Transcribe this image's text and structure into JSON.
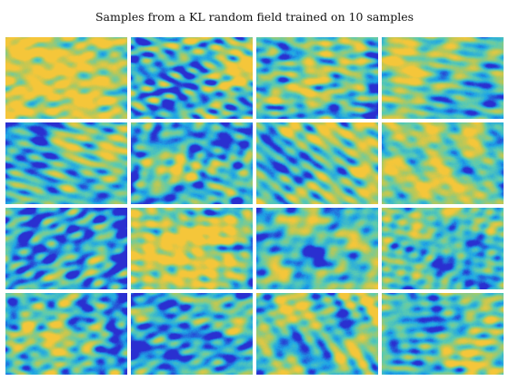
{
  "title": "Samples from a KL random field trained on 10 samples",
  "colors": {
    "low": "#2a2fd0",
    "mid_low": "#1ea6e6",
    "mid": "#5ccbb0",
    "mid_high": "#b6c85a",
    "high": "#f5c63a"
  },
  "samples": [
    {
      "id": 1,
      "base": 0.82,
      "blobs": [
        [
          0.25,
          0.35,
          0.35,
          0.1
        ],
        [
          0.7,
          0.6,
          0.3,
          0.05
        ]
      ],
      "edge": "right"
    },
    {
      "id": 2,
      "base": 0.4,
      "blobs": [
        [
          0.88,
          0.4,
          0.18,
          0.55
        ],
        [
          0.2,
          0.7,
          0.2,
          -0.2
        ]
      ],
      "edge": "none"
    },
    {
      "id": 3,
      "base": 0.45,
      "blobs": [
        [
          0.35,
          0.55,
          0.15,
          0.4
        ],
        [
          0.75,
          0.25,
          0.25,
          0.25
        ],
        [
          0.15,
          0.3,
          0.2,
          -0.2
        ]
      ],
      "edge": "right"
    },
    {
      "id": 4,
      "base": 0.55,
      "blobs": [
        [
          0.2,
          0.3,
          0.25,
          0.25
        ],
        [
          0.75,
          0.8,
          0.2,
          -0.3
        ]
      ],
      "edge": "none"
    },
    {
      "id": 5,
      "base": 0.45,
      "blobs": [
        [
          0.35,
          0.5,
          0.15,
          -0.3
        ],
        [
          0.8,
          0.35,
          0.2,
          0.35
        ]
      ],
      "edge": "topleft"
    },
    {
      "id": 6,
      "base": 0.42,
      "blobs": [
        [
          0.35,
          0.52,
          0.12,
          0.55
        ],
        [
          0.7,
          0.2,
          0.2,
          -0.25
        ]
      ],
      "edge": "left"
    },
    {
      "id": 7,
      "base": 0.55,
      "blobs": [
        [
          0.3,
          0.5,
          0.2,
          -0.35
        ],
        [
          0.55,
          0.15,
          0.15,
          0.35
        ],
        [
          0.85,
          0.7,
          0.2,
          0.2
        ]
      ],
      "edge": "none"
    },
    {
      "id": 8,
      "base": 0.62,
      "blobs": [
        [
          0.5,
          0.5,
          0.3,
          0.1
        ]
      ],
      "edge": "right"
    },
    {
      "id": 9,
      "base": 0.4,
      "blobs": [
        [
          0.25,
          0.4,
          0.3,
          -0.2
        ],
        [
          0.75,
          0.6,
          0.25,
          0.05
        ]
      ],
      "edge": "topright"
    },
    {
      "id": 10,
      "base": 0.7,
      "blobs": [
        [
          0.45,
          0.4,
          0.3,
          0.2
        ],
        [
          0.5,
          0.8,
          0.2,
          0.15
        ]
      ],
      "edge": "right"
    },
    {
      "id": 11,
      "base": 0.55,
      "blobs": [
        [
          0.35,
          0.55,
          0.15,
          -0.45
        ],
        [
          0.2,
          0.2,
          0.2,
          0.25
        ]
      ],
      "edge": "topleft"
    },
    {
      "id": 12,
      "base": 0.45,
      "blobs": [
        [
          0.3,
          0.15,
          0.2,
          0.3
        ],
        [
          0.7,
          0.6,
          0.3,
          -0.1
        ]
      ],
      "edge": "none"
    },
    {
      "id": 13,
      "base": 0.45,
      "blobs": [
        [
          0.38,
          0.55,
          0.13,
          0.55
        ],
        [
          0.75,
          0.3,
          0.2,
          -0.1
        ]
      ],
      "edge": "right"
    },
    {
      "id": 14,
      "base": 0.35,
      "blobs": [
        [
          0.3,
          0.5,
          0.3,
          -0.15
        ],
        [
          0.8,
          0.4,
          0.2,
          0.15
        ]
      ],
      "edge": "none"
    },
    {
      "id": 15,
      "base": 0.52,
      "blobs": [
        [
          0.9,
          0.1,
          0.12,
          0.45
        ],
        [
          0.4,
          0.6,
          0.3,
          -0.05
        ]
      ],
      "edge": "none"
    },
    {
      "id": 16,
      "base": 0.5,
      "blobs": [
        [
          0.35,
          0.45,
          0.18,
          -0.4
        ],
        [
          0.8,
          0.6,
          0.2,
          0.35
        ]
      ],
      "edge": "none"
    }
  ]
}
